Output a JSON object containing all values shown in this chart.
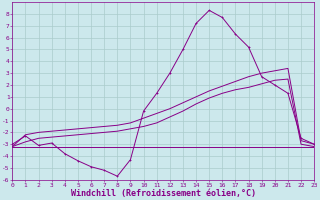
{
  "background_color": "#cce8ec",
  "grid_color": "#aacccc",
  "line_color": "#880088",
  "xlabel": "Windchill (Refroidissement éolien,°C)",
  "xlim": [
    0,
    23
  ],
  "ylim": [
    -6,
    9
  ],
  "xticks": [
    0,
    1,
    2,
    3,
    4,
    5,
    6,
    7,
    8,
    9,
    10,
    11,
    12,
    13,
    14,
    15,
    16,
    17,
    18,
    19,
    20,
    21,
    22,
    23
  ],
  "yticks": [
    -6,
    -5,
    -4,
    -3,
    -2,
    -1,
    0,
    1,
    2,
    3,
    4,
    5,
    6,
    7,
    8
  ],
  "curve1_x": [
    0,
    1,
    2,
    3,
    4,
    5,
    6,
    7,
    8,
    9,
    10,
    11,
    12,
    13,
    14,
    15,
    16,
    17,
    18,
    19,
    20,
    21,
    22,
    23
  ],
  "curve1_y": [
    -3.0,
    -2.3,
    -3.1,
    -2.9,
    -3.8,
    -4.4,
    -4.9,
    -5.2,
    -5.7,
    -4.3,
    -0.2,
    1.3,
    3.0,
    5.0,
    7.2,
    8.3,
    7.7,
    6.3,
    5.2,
    2.7,
    2.0,
    1.3,
    -2.5,
    -3.0
  ],
  "curve2_x": [
    0,
    1,
    2,
    3,
    4,
    5,
    6,
    7,
    8,
    9,
    10,
    11,
    12,
    13,
    14,
    15,
    16,
    17,
    18,
    19,
    20,
    21,
    22,
    23
  ],
  "curve2_y": [
    -3.2,
    -3.2,
    -3.2,
    -3.2,
    -3.2,
    -3.2,
    -3.2,
    -3.2,
    -3.2,
    -3.2,
    -3.2,
    -3.2,
    -3.2,
    -3.2,
    -3.2,
    -3.2,
    -3.2,
    -3.2,
    -3.2,
    -3.2,
    -3.2,
    -3.2,
    -3.2,
    -3.2
  ],
  "curve3_x": [
    0,
    1,
    2,
    3,
    4,
    5,
    6,
    7,
    8,
    9,
    10,
    11,
    12,
    13,
    14,
    15,
    16,
    17,
    18,
    19,
    20,
    21,
    22,
    23
  ],
  "curve3_y": [
    -3.2,
    -2.8,
    -2.5,
    -2.4,
    -2.3,
    -2.2,
    -2.1,
    -2.0,
    -1.9,
    -1.7,
    -1.5,
    -1.2,
    -0.7,
    -0.2,
    0.4,
    0.9,
    1.3,
    1.6,
    1.8,
    2.1,
    2.4,
    2.5,
    -3.0,
    -3.2
  ],
  "curve4_x": [
    0,
    1,
    2,
    3,
    4,
    5,
    6,
    7,
    8,
    9,
    10,
    11,
    12,
    13,
    14,
    15,
    16,
    17,
    18,
    19,
    20,
    21,
    22,
    23
  ],
  "curve4_y": [
    -3.2,
    -2.2,
    -2.0,
    -1.9,
    -1.8,
    -1.7,
    -1.6,
    -1.5,
    -1.4,
    -1.2,
    -0.8,
    -0.4,
    0.0,
    0.5,
    1.0,
    1.5,
    1.9,
    2.3,
    2.7,
    3.0,
    3.2,
    3.4,
    -2.7,
    -3.0
  ],
  "font_family": "monospace",
  "tick_fontsize": 4.5,
  "label_fontsize": 6.0,
  "lw": 0.7
}
